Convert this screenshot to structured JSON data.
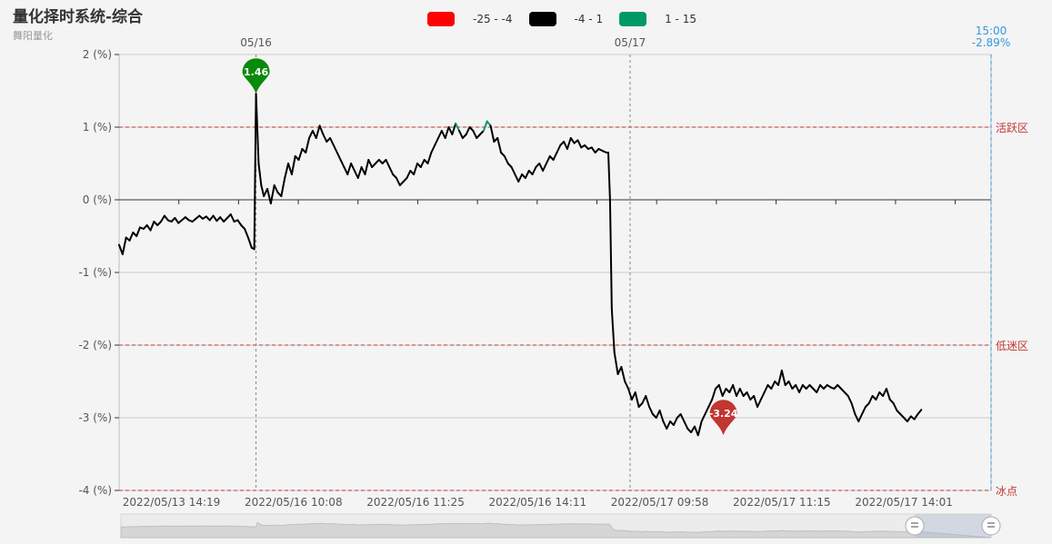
{
  "header": {
    "title": "量化择时系统-综合",
    "subtitle": "舞阳量化"
  },
  "legend": [
    {
      "label": "-25 - -4",
      "color": "#ff0000"
    },
    {
      "label": "-4 - 1",
      "color": "#000000"
    },
    {
      "label": "1 - 15",
      "color": "#009966"
    }
  ],
  "chart_data": {
    "type": "line",
    "y_axis": {
      "range": [
        -4,
        2
      ],
      "ticks": [
        {
          "value": 2,
          "label": "2 (%)"
        },
        {
          "value": 1,
          "label": "1 (%)"
        },
        {
          "value": 0,
          "label": "0 (%)"
        },
        {
          "value": -1,
          "label": "-1 (%)"
        },
        {
          "value": -2,
          "label": "-2 (%)"
        },
        {
          "value": -3,
          "label": "-3 (%)"
        },
        {
          "value": -4,
          "label": "-4 (%)"
        }
      ]
    },
    "x_axis": {
      "tick_labels": [
        {
          "pos": 0.06,
          "label": "2022/05/13 14:19"
        },
        {
          "pos": 0.2,
          "label": "2022/05/16 10:08"
        },
        {
          "pos": 0.34,
          "label": "2022/05/16 11:25"
        },
        {
          "pos": 0.48,
          "label": "2022/05/16 14:11"
        },
        {
          "pos": 0.62,
          "label": "2022/05/17 09:58"
        },
        {
          "pos": 0.76,
          "label": "2022/05/17 11:15"
        },
        {
          "pos": 0.9,
          "label": "2022/05/17 14:01"
        }
      ]
    },
    "day_markers": [
      {
        "pos": 0.157,
        "label": "05/16"
      },
      {
        "pos": 0.586,
        "label": "05/17"
      }
    ],
    "end_marker": {
      "time": "15:00",
      "value": "-2.89%"
    },
    "zones": [
      {
        "value": 1,
        "label": "活跃区"
      },
      {
        "value": -2,
        "label": "低迷区"
      },
      {
        "value": -4,
        "label": "冰点"
      }
    ],
    "visual_map": [
      {
        "range": [
          -25,
          -4
        ],
        "color": "#ff0000"
      },
      {
        "range": [
          -4,
          1
        ],
        "color": "#000000"
      },
      {
        "range": [
          1,
          15
        ],
        "color": "#009966"
      }
    ],
    "mark_points": [
      {
        "type": "max",
        "pos": 0.157,
        "value": 1.46,
        "label": "1.46",
        "color": "#0a8a0a"
      },
      {
        "type": "min",
        "pos": 0.693,
        "value": -3.24,
        "label": "-3.24",
        "color": "#c23531"
      }
    ],
    "series": [
      {
        "points": [
          [
            0.0,
            -0.62
          ],
          [
            0.004,
            -0.75
          ],
          [
            0.008,
            -0.52
          ],
          [
            0.012,
            -0.56
          ],
          [
            0.016,
            -0.45
          ],
          [
            0.02,
            -0.5
          ],
          [
            0.024,
            -0.38
          ],
          [
            0.028,
            -0.4
          ],
          [
            0.032,
            -0.35
          ],
          [
            0.036,
            -0.42
          ],
          [
            0.04,
            -0.3
          ],
          [
            0.044,
            -0.35
          ],
          [
            0.048,
            -0.3
          ],
          [
            0.052,
            -0.22
          ],
          [
            0.056,
            -0.28
          ],
          [
            0.06,
            -0.3
          ],
          [
            0.064,
            -0.25
          ],
          [
            0.068,
            -0.32
          ],
          [
            0.072,
            -0.28
          ],
          [
            0.076,
            -0.24
          ],
          [
            0.08,
            -0.28
          ],
          [
            0.084,
            -0.3
          ],
          [
            0.088,
            -0.26
          ],
          [
            0.092,
            -0.22
          ],
          [
            0.096,
            -0.26
          ],
          [
            0.1,
            -0.23
          ],
          [
            0.104,
            -0.28
          ],
          [
            0.108,
            -0.22
          ],
          [
            0.112,
            -0.29
          ],
          [
            0.116,
            -0.24
          ],
          [
            0.12,
            -0.3
          ],
          [
            0.124,
            -0.25
          ],
          [
            0.128,
            -0.2
          ],
          [
            0.132,
            -0.3
          ],
          [
            0.136,
            -0.28
          ],
          [
            0.14,
            -0.35
          ],
          [
            0.144,
            -0.4
          ],
          [
            0.148,
            -0.52
          ],
          [
            0.152,
            -0.66
          ],
          [
            0.155,
            -0.68
          ],
          [
            0.157,
            1.46
          ],
          [
            0.16,
            0.5
          ],
          [
            0.163,
            0.2
          ],
          [
            0.166,
            0.05
          ],
          [
            0.17,
            0.15
          ],
          [
            0.174,
            -0.05
          ],
          [
            0.178,
            0.2
          ],
          [
            0.182,
            0.1
          ],
          [
            0.186,
            0.05
          ],
          [
            0.19,
            0.3
          ],
          [
            0.194,
            0.5
          ],
          [
            0.198,
            0.35
          ],
          [
            0.202,
            0.6
          ],
          [
            0.206,
            0.55
          ],
          [
            0.21,
            0.7
          ],
          [
            0.214,
            0.65
          ],
          [
            0.218,
            0.85
          ],
          [
            0.222,
            0.95
          ],
          [
            0.226,
            0.85
          ],
          [
            0.23,
            1.02
          ],
          [
            0.234,
            0.9
          ],
          [
            0.238,
            0.8
          ],
          [
            0.242,
            0.85
          ],
          [
            0.246,
            0.75
          ],
          [
            0.25,
            0.65
          ],
          [
            0.254,
            0.55
          ],
          [
            0.258,
            0.45
          ],
          [
            0.262,
            0.35
          ],
          [
            0.266,
            0.5
          ],
          [
            0.27,
            0.4
          ],
          [
            0.274,
            0.3
          ],
          [
            0.278,
            0.45
          ],
          [
            0.282,
            0.35
          ],
          [
            0.286,
            0.55
          ],
          [
            0.29,
            0.45
          ],
          [
            0.294,
            0.5
          ],
          [
            0.298,
            0.55
          ],
          [
            0.302,
            0.5
          ],
          [
            0.306,
            0.55
          ],
          [
            0.31,
            0.45
          ],
          [
            0.314,
            0.35
          ],
          [
            0.318,
            0.3
          ],
          [
            0.322,
            0.2
          ],
          [
            0.326,
            0.25
          ],
          [
            0.33,
            0.3
          ],
          [
            0.334,
            0.4
          ],
          [
            0.338,
            0.35
          ],
          [
            0.342,
            0.5
          ],
          [
            0.346,
            0.45
          ],
          [
            0.35,
            0.55
          ],
          [
            0.354,
            0.5
          ],
          [
            0.358,
            0.65
          ],
          [
            0.362,
            0.75
          ],
          [
            0.366,
            0.85
          ],
          [
            0.37,
            0.95
          ],
          [
            0.374,
            0.85
          ],
          [
            0.378,
            1.0
          ],
          [
            0.382,
            0.9
          ],
          [
            0.386,
            1.05
          ],
          [
            0.39,
            0.95
          ],
          [
            0.394,
            0.85
          ],
          [
            0.398,
            0.9
          ],
          [
            0.402,
            1.0
          ],
          [
            0.406,
            0.95
          ],
          [
            0.41,
            0.85
          ],
          [
            0.414,
            0.9
          ],
          [
            0.418,
            0.95
          ],
          [
            0.422,
            1.08
          ],
          [
            0.426,
            1.02
          ],
          [
            0.43,
            0.8
          ],
          [
            0.434,
            0.85
          ],
          [
            0.438,
            0.65
          ],
          [
            0.442,
            0.6
          ],
          [
            0.446,
            0.5
          ],
          [
            0.45,
            0.45
          ],
          [
            0.454,
            0.35
          ],
          [
            0.458,
            0.25
          ],
          [
            0.462,
            0.35
          ],
          [
            0.466,
            0.3
          ],
          [
            0.47,
            0.4
          ],
          [
            0.474,
            0.35
          ],
          [
            0.478,
            0.45
          ],
          [
            0.482,
            0.5
          ],
          [
            0.486,
            0.4
          ],
          [
            0.49,
            0.5
          ],
          [
            0.494,
            0.6
          ],
          [
            0.498,
            0.55
          ],
          [
            0.502,
            0.65
          ],
          [
            0.506,
            0.75
          ],
          [
            0.51,
            0.8
          ],
          [
            0.514,
            0.7
          ],
          [
            0.518,
            0.85
          ],
          [
            0.522,
            0.78
          ],
          [
            0.526,
            0.82
          ],
          [
            0.53,
            0.72
          ],
          [
            0.534,
            0.75
          ],
          [
            0.538,
            0.7
          ],
          [
            0.542,
            0.72
          ],
          [
            0.546,
            0.65
          ],
          [
            0.55,
            0.7
          ],
          [
            0.555,
            0.67
          ],
          [
            0.559,
            0.65
          ],
          [
            0.561,
            0.65
          ],
          [
            0.563,
            0.0
          ],
          [
            0.565,
            -1.5
          ],
          [
            0.568,
            -2.1
          ],
          [
            0.572,
            -2.4
          ],
          [
            0.576,
            -2.3
          ],
          [
            0.58,
            -2.5
          ],
          [
            0.584,
            -2.6
          ],
          [
            0.588,
            -2.75
          ],
          [
            0.592,
            -2.65
          ],
          [
            0.596,
            -2.85
          ],
          [
            0.6,
            -2.8
          ],
          [
            0.604,
            -2.7
          ],
          [
            0.608,
            -2.85
          ],
          [
            0.612,
            -2.95
          ],
          [
            0.616,
            -3.0
          ],
          [
            0.62,
            -2.9
          ],
          [
            0.624,
            -3.05
          ],
          [
            0.628,
            -3.15
          ],
          [
            0.632,
            -3.05
          ],
          [
            0.636,
            -3.1
          ],
          [
            0.64,
            -3.0
          ],
          [
            0.644,
            -2.95
          ],
          [
            0.648,
            -3.05
          ],
          [
            0.652,
            -3.15
          ],
          [
            0.656,
            -3.2
          ],
          [
            0.66,
            -3.12
          ],
          [
            0.664,
            -3.24
          ],
          [
            0.668,
            -3.05
          ],
          [
            0.672,
            -2.95
          ],
          [
            0.676,
            -2.85
          ],
          [
            0.68,
            -2.75
          ],
          [
            0.684,
            -2.6
          ],
          [
            0.688,
            -2.55
          ],
          [
            0.692,
            -2.7
          ],
          [
            0.696,
            -2.6
          ],
          [
            0.7,
            -2.65
          ],
          [
            0.704,
            -2.55
          ],
          [
            0.708,
            -2.7
          ],
          [
            0.712,
            -2.6
          ],
          [
            0.716,
            -2.7
          ],
          [
            0.72,
            -2.65
          ],
          [
            0.724,
            -2.75
          ],
          [
            0.728,
            -2.7
          ],
          [
            0.732,
            -2.85
          ],
          [
            0.736,
            -2.75
          ],
          [
            0.74,
            -2.65
          ],
          [
            0.744,
            -2.55
          ],
          [
            0.748,
            -2.6
          ],
          [
            0.752,
            -2.5
          ],
          [
            0.756,
            -2.55
          ],
          [
            0.76,
            -2.35
          ],
          [
            0.764,
            -2.55
          ],
          [
            0.768,
            -2.5
          ],
          [
            0.772,
            -2.6
          ],
          [
            0.776,
            -2.55
          ],
          [
            0.78,
            -2.65
          ],
          [
            0.784,
            -2.55
          ],
          [
            0.788,
            -2.6
          ],
          [
            0.792,
            -2.55
          ],
          [
            0.796,
            -2.6
          ],
          [
            0.8,
            -2.65
          ],
          [
            0.804,
            -2.55
          ],
          [
            0.808,
            -2.6
          ],
          [
            0.812,
            -2.55
          ],
          [
            0.816,
            -2.58
          ],
          [
            0.82,
            -2.6
          ],
          [
            0.824,
            -2.55
          ],
          [
            0.828,
            -2.6
          ],
          [
            0.832,
            -2.65
          ],
          [
            0.836,
            -2.7
          ],
          [
            0.84,
            -2.8
          ],
          [
            0.844,
            -2.95
          ],
          [
            0.848,
            -3.05
          ],
          [
            0.852,
            -2.95
          ],
          [
            0.856,
            -2.85
          ],
          [
            0.86,
            -2.8
          ],
          [
            0.864,
            -2.7
          ],
          [
            0.868,
            -2.75
          ],
          [
            0.872,
            -2.65
          ],
          [
            0.876,
            -2.7
          ],
          [
            0.88,
            -2.6
          ],
          [
            0.884,
            -2.75
          ],
          [
            0.888,
            -2.8
          ],
          [
            0.892,
            -2.9
          ],
          [
            0.896,
            -2.95
          ],
          [
            0.9,
            -3.0
          ],
          [
            0.904,
            -3.05
          ],
          [
            0.908,
            -2.98
          ],
          [
            0.912,
            -3.02
          ],
          [
            0.916,
            -2.95
          ],
          [
            0.92,
            -2.89
          ]
        ]
      }
    ]
  }
}
